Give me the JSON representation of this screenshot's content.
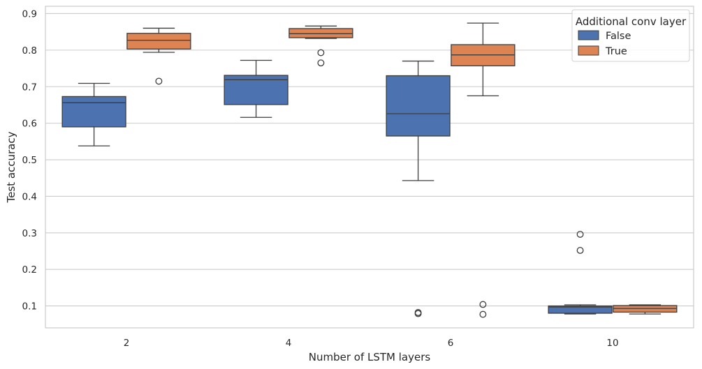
{
  "chart_data": {
    "type": "box",
    "xlabel": "Number of LSTM layers",
    "ylabel": "Test accuracy",
    "categories": [
      "2",
      "4",
      "6",
      "10"
    ],
    "ylim": [
      0.04,
      0.92
    ],
    "yticks": [
      0.1,
      0.2,
      0.3,
      0.4,
      0.5,
      0.6,
      0.7,
      0.8,
      0.9
    ],
    "ytick_labels": [
      "0.1",
      "0.2",
      "0.3",
      "0.4",
      "0.5",
      "0.6",
      "0.7",
      "0.8",
      "0.9"
    ],
    "grid": true,
    "legend": {
      "title": "Additional conv layer",
      "placement": "top-right"
    },
    "series": [
      {
        "name": "False",
        "color": "#4c72b0",
        "boxes": [
          {
            "category": "2",
            "whisker_low": 0.538,
            "q1": 0.59,
            "median": 0.656,
            "q3": 0.673,
            "whisker_high": 0.709,
            "outliers": []
          },
          {
            "category": "4",
            "whisker_low": 0.616,
            "q1": 0.651,
            "median": 0.719,
            "q3": 0.731,
            "whisker_high": 0.772,
            "outliers": []
          },
          {
            "category": "6",
            "whisker_low": 0.443,
            "q1": 0.565,
            "median": 0.626,
            "q3": 0.73,
            "whisker_high": 0.77,
            "outliers": [
              0.082,
              0.079
            ]
          },
          {
            "category": "10",
            "whisker_low": 0.078,
            "q1": 0.08,
            "median": 0.097,
            "q3": 0.1,
            "whisker_high": 0.103,
            "outliers": [
              0.296,
              0.252
            ]
          }
        ]
      },
      {
        "name": "True",
        "color": "#dd8452",
        "boxes": [
          {
            "category": "2",
            "whisker_low": 0.794,
            "q1": 0.803,
            "median": 0.827,
            "q3": 0.846,
            "whisker_high": 0.86,
            "outliers": [
              0.715
            ]
          },
          {
            "category": "4",
            "whisker_low": 0.832,
            "q1": 0.834,
            "median": 0.845,
            "q3": 0.859,
            "whisker_high": 0.866,
            "outliers": [
              0.793,
              0.765
            ]
          },
          {
            "category": "6",
            "whisker_low": 0.675,
            "q1": 0.757,
            "median": 0.787,
            "q3": 0.815,
            "whisker_high": 0.874,
            "outliers": [
              0.104,
              0.077
            ]
          },
          {
            "category": "10",
            "whisker_low": 0.078,
            "q1": 0.083,
            "median": 0.093,
            "q3": 0.101,
            "whisker_high": 0.103,
            "outliers": []
          }
        ]
      }
    ]
  }
}
